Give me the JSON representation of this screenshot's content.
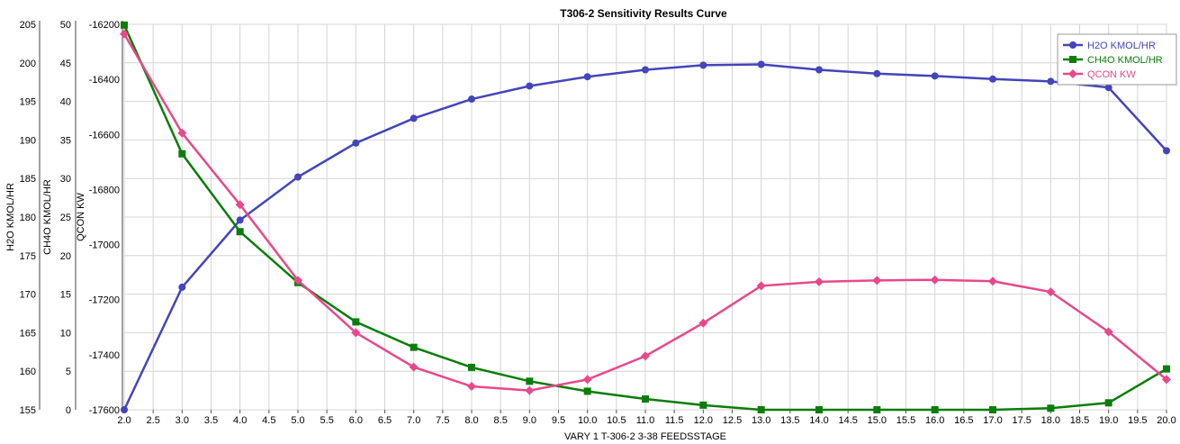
{
  "chart_data": {
    "type": "line",
    "title": "T306-2 Sensitivity Results Curve",
    "xlabel": "VARY  1 T-306-2 3-38 FEEDSSTAGE",
    "x": [
      2.0,
      3.0,
      4.0,
      5.0,
      6.0,
      7.0,
      8.0,
      9.0,
      10.0,
      11.0,
      12.0,
      13.0,
      14.0,
      15.0,
      16.0,
      17.0,
      18.0,
      19.0,
      20.0
    ],
    "xlim": [
      2.0,
      20.0
    ],
    "xticks": [
      "2.0",
      "2.5",
      "3.0",
      "3.5",
      "4.0",
      "4.5",
      "5.0",
      "5.5",
      "6.0",
      "6.5",
      "7.0",
      "7.5",
      "8.0",
      "8.5",
      "9.0",
      "9.5",
      "10.0",
      "10.5",
      "11.0",
      "11.5",
      "12.0",
      "12.5",
      "13.0",
      "13.5",
      "14.0",
      "14.5",
      "15.0",
      "15.5",
      "16.0",
      "16.5",
      "17.0",
      "17.5",
      "18.0",
      "18.5",
      "19.0",
      "19.5",
      "20.0"
    ],
    "axes": [
      {
        "label": "H2O KMOL/HR",
        "ylim": [
          155,
          205
        ],
        "ticks": [
          "155",
          "160",
          "165",
          "170",
          "175",
          "180",
          "185",
          "190",
          "195",
          "200",
          "205"
        ]
      },
      {
        "label": "CH4O KMOL/HR",
        "ylim": [
          0,
          50
        ],
        "ticks": [
          "0",
          "5",
          "10",
          "15",
          "20",
          "25",
          "30",
          "35",
          "40",
          "45",
          "50"
        ]
      },
      {
        "label": "QCON KW",
        "ylim": [
          -17600,
          -16200
        ],
        "ticks": [
          "-17600",
          "-17400",
          "-17200",
          "-17000",
          "-16800",
          "-16600",
          "-16400",
          "-16200"
        ]
      }
    ],
    "series": [
      {
        "name": "H2O KMOL/HR",
        "axis": 0,
        "color": "#4444bb",
        "marker": "circle",
        "values": [
          155.0,
          170.9,
          179.6,
          185.2,
          189.6,
          192.8,
          195.3,
          197.0,
          198.2,
          199.1,
          199.7,
          199.8,
          199.1,
          198.6,
          198.3,
          197.9,
          197.6,
          196.8,
          188.6
        ]
      },
      {
        "name": "CH4O KMOL/HR",
        "axis": 1,
        "color": "#0a7d0a",
        "marker": "square",
        "values": [
          49.9,
          33.2,
          23.1,
          16.5,
          11.4,
          8.1,
          5.5,
          3.7,
          2.4,
          1.4,
          0.6,
          0.0,
          0.0,
          0.0,
          0.0,
          0.0,
          0.2,
          0.9,
          5.3
        ]
      },
      {
        "name": "QCON KW",
        "axis": 2,
        "color": "#e8488a",
        "marker": "diamond",
        "values": [
          -16235,
          -16595,
          -16855,
          -17130,
          -17320,
          -17445,
          -17515,
          -17530,
          -17490,
          -17405,
          -17285,
          -17150,
          -17135,
          -17130,
          -17128,
          -17133,
          -17172,
          -17317,
          -17490
        ]
      }
    ],
    "grid": true,
    "legend": "top-right"
  }
}
